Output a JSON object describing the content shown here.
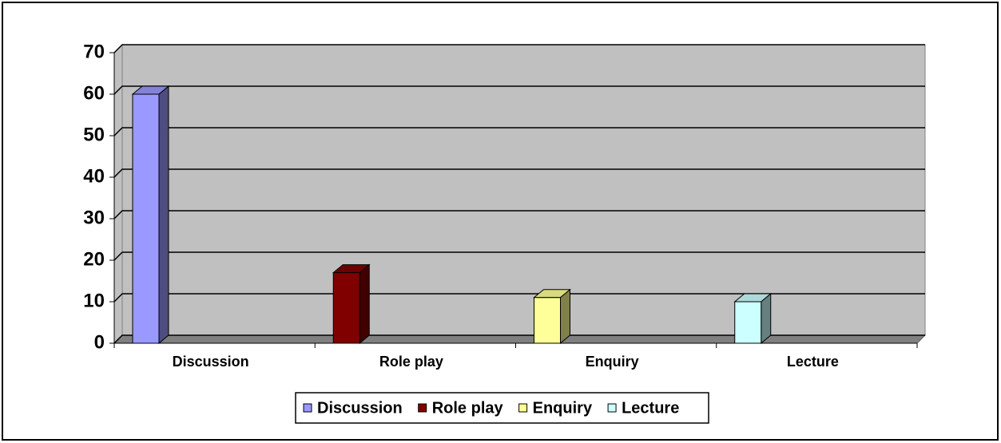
{
  "chart_data": {
    "type": "bar3d",
    "categories": [
      "Discussion",
      "Role play",
      "Enquiry",
      "Lecture"
    ],
    "series": [
      {
        "name": "Discussion",
        "color": "#9999ff",
        "values": [
          60,
          null,
          null,
          null
        ]
      },
      {
        "name": "Role play",
        "color": "#800000",
        "values": [
          null,
          17,
          null,
          null
        ]
      },
      {
        "name": "Enquiry",
        "color": "#ffff99",
        "values": [
          null,
          null,
          11,
          null
        ]
      },
      {
        "name": "Lecture",
        "color": "#ccffff",
        "values": [
          null,
          null,
          null,
          10
        ]
      }
    ],
    "ylim": [
      0,
      70
    ],
    "yticks": [
      0,
      10,
      20,
      30,
      40,
      50,
      60,
      70
    ],
    "grid": true,
    "legend": "bottom"
  }
}
